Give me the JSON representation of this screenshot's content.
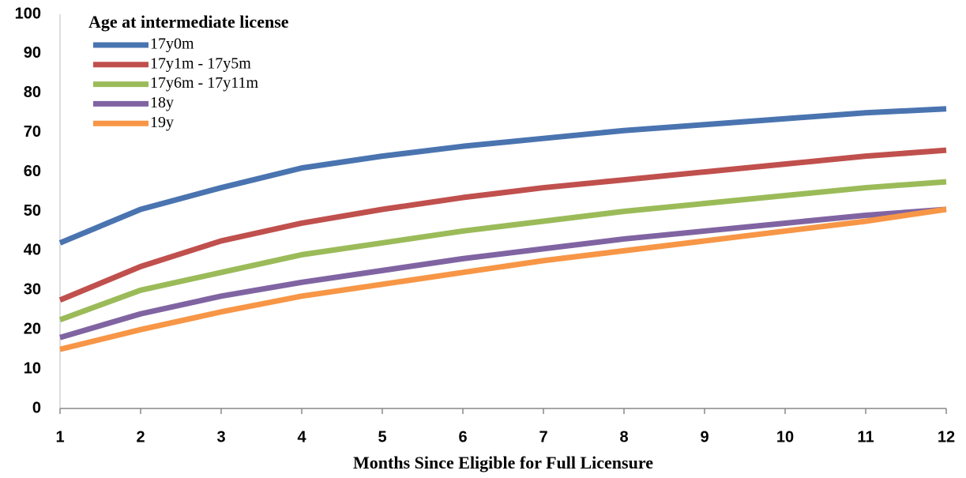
{
  "chart_data": {
    "type": "line",
    "legend_title": "Age at intermediate license",
    "x_label": "Months Since Eligible for Full Licensure",
    "x": [
      1,
      2,
      3,
      4,
      5,
      6,
      7,
      8,
      9,
      10,
      11,
      12
    ],
    "xlim": [
      1,
      12
    ],
    "xticks": [
      1,
      2,
      3,
      4,
      5,
      6,
      7,
      8,
      9,
      10,
      11,
      12
    ],
    "ylim": [
      0,
      100
    ],
    "yticks": [
      0,
      10,
      20,
      30,
      40,
      50,
      60,
      70,
      80,
      90,
      100
    ],
    "legend": "upper left",
    "series": [
      {
        "name": "17y0m",
        "color": "#4a74b0",
        "values": [
          42,
          50.5,
          56,
          61,
          64,
          66.5,
          68.5,
          70.5,
          72,
          73.5,
          75,
          76
        ]
      },
      {
        "name": "17y1m - 17y5m",
        "color": "#c0504d",
        "values": [
          27.5,
          36,
          42.5,
          47,
          50.5,
          53.5,
          56,
          58,
          60,
          62,
          64,
          65.5
        ]
      },
      {
        "name": "17y6m - 17y11m",
        "color": "#9bbb59",
        "values": [
          22.5,
          30,
          34.5,
          39,
          42,
          45,
          47.5,
          50,
          52,
          54,
          56,
          57.5
        ]
      },
      {
        "name": "18y",
        "color": "#8064a2",
        "values": [
          18,
          24,
          28.5,
          32,
          35,
          38,
          40.5,
          43,
          45,
          47,
          49,
          50.5
        ]
      },
      {
        "name": "19y",
        "color": "#f79646",
        "values": [
          15,
          20,
          24.5,
          28.5,
          31.5,
          34.5,
          37.5,
          40,
          42.5,
          45,
          47.5,
          50.5
        ]
      }
    ]
  }
}
